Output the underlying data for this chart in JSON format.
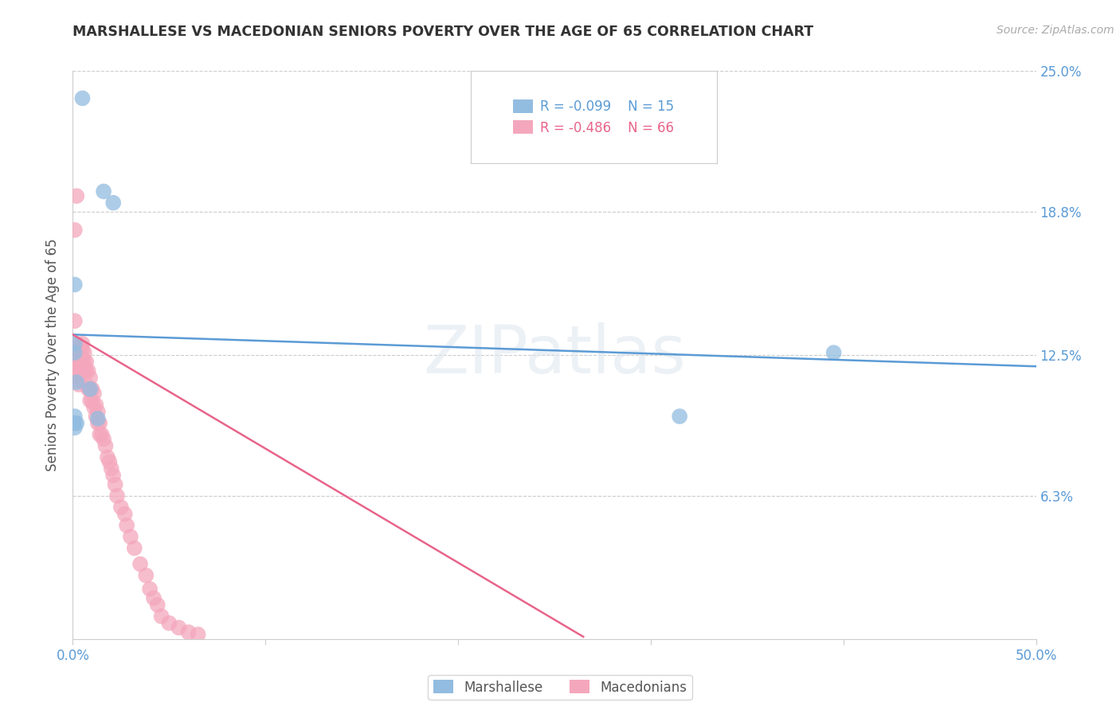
{
  "title": "MARSHALLESE VS MACEDONIAN SENIORS POVERTY OVER THE AGE OF 65 CORRELATION CHART",
  "source": "Source: ZipAtlas.com",
  "ylabel": "Seniors Poverty Over the Age of 65",
  "xlim": [
    0.0,
    0.5
  ],
  "ylim": [
    0.0,
    0.25
  ],
  "grid_color": "#cccccc",
  "background_color": "#ffffff",
  "watermark": "ZIPatlas",
  "legend_marshallese_R": "-0.099",
  "legend_marshallese_N": "15",
  "legend_macedonian_R": "-0.486",
  "legend_macedonian_N": "66",
  "marshallese_color": "#92bce0",
  "macedonian_color": "#f4a7bc",
  "marshallese_line_color": "#5b9bd5",
  "macedonian_line_color": "#e8648a",
  "marshallese_points_x": [
    0.005,
    0.016,
    0.021,
    0.001,
    0.001,
    0.001,
    0.002,
    0.001,
    0.002,
    0.001,
    0.009,
    0.013,
    0.395,
    0.315,
    0.001
  ],
  "marshallese_points_y": [
    0.238,
    0.197,
    0.192,
    0.156,
    0.13,
    0.126,
    0.113,
    0.098,
    0.095,
    0.095,
    0.11,
    0.097,
    0.126,
    0.098,
    0.093
  ],
  "macedonian_points_x": [
    0.002,
    0.001,
    0.001,
    0.002,
    0.002,
    0.002,
    0.002,
    0.003,
    0.003,
    0.003,
    0.003,
    0.003,
    0.003,
    0.004,
    0.004,
    0.004,
    0.004,
    0.005,
    0.005,
    0.005,
    0.005,
    0.006,
    0.006,
    0.006,
    0.007,
    0.007,
    0.007,
    0.008,
    0.008,
    0.009,
    0.009,
    0.009,
    0.01,
    0.01,
    0.011,
    0.011,
    0.012,
    0.012,
    0.013,
    0.013,
    0.014,
    0.014,
    0.015,
    0.016,
    0.017,
    0.018,
    0.019,
    0.02,
    0.021,
    0.022,
    0.023,
    0.025,
    0.027,
    0.028,
    0.03,
    0.032,
    0.035,
    0.038,
    0.04,
    0.042,
    0.044,
    0.046,
    0.05,
    0.055,
    0.06,
    0.065
  ],
  "macedonian_points_y": [
    0.195,
    0.14,
    0.18,
    0.13,
    0.128,
    0.125,
    0.122,
    0.122,
    0.12,
    0.118,
    0.116,
    0.114,
    0.112,
    0.128,
    0.125,
    0.12,
    0.118,
    0.13,
    0.127,
    0.123,
    0.118,
    0.126,
    0.122,
    0.118,
    0.122,
    0.118,
    0.112,
    0.118,
    0.11,
    0.115,
    0.11,
    0.105,
    0.11,
    0.105,
    0.108,
    0.102,
    0.103,
    0.098,
    0.1,
    0.095,
    0.095,
    0.09,
    0.09,
    0.088,
    0.085,
    0.08,
    0.078,
    0.075,
    0.072,
    0.068,
    0.063,
    0.058,
    0.055,
    0.05,
    0.045,
    0.04,
    0.033,
    0.028,
    0.022,
    0.018,
    0.015,
    0.01,
    0.007,
    0.005,
    0.003,
    0.002
  ],
  "marshallese_line_x": [
    0.0,
    0.5
  ],
  "marshallese_line_y": [
    0.134,
    0.12
  ],
  "macedonian_line_x": [
    0.0,
    0.265
  ],
  "macedonian_line_y": [
    0.134,
    0.001
  ]
}
